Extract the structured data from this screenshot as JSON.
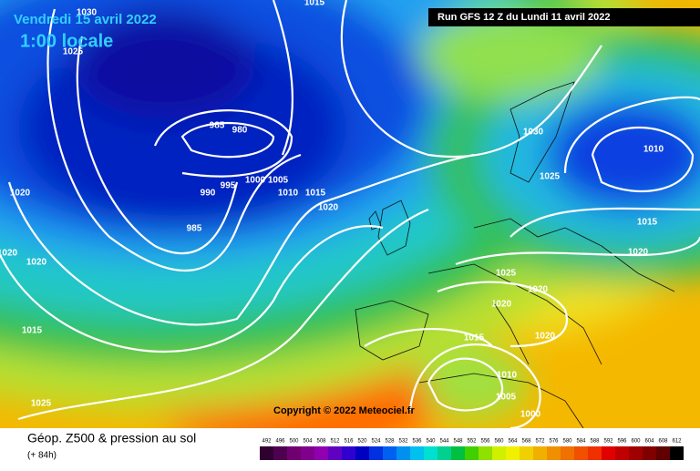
{
  "header": {
    "date": "Vendredi 15 avril 2022",
    "time": "1:00 locale",
    "run": "Run GFS 12 Z du Lundi 11 avril 2022"
  },
  "copyright": "Copyright © 2022 Meteociel.fr",
  "isobar_labels": [
    "1030",
    "1015",
    "1025",
    "985",
    "980",
    "1000",
    "1005",
    "990",
    "995",
    "1010",
    "1015",
    "1020",
    "985",
    "1020",
    "1020",
    "1020",
    "1015",
    "1025",
    "1030",
    "1025",
    "1010",
    "1015",
    "1020",
    "1025",
    "1020",
    "1020",
    "1015",
    "1020",
    "1010",
    "1005",
    "1000"
  ],
  "legend": {
    "title": "Géop. Z500 & pression au sol",
    "subtitle": "(+ 84h)",
    "scale": [
      492,
      496,
      500,
      504,
      508,
      512,
      516,
      520,
      524,
      528,
      532,
      536,
      540,
      544,
      548,
      552,
      556,
      560,
      564,
      568,
      572,
      576,
      580,
      584,
      588,
      592,
      596,
      600,
      604,
      608,
      612
    ],
    "colors": [
      "#300030",
      "#500050",
      "#700070",
      "#80008c",
      "#9000b0",
      "#6000c0",
      "#3000d0",
      "#0000c0",
      "#0030e0",
      "#0060f0",
      "#0090f0",
      "#00c0f0",
      "#00e0d0",
      "#00d090",
      "#00c040",
      "#40d000",
      "#90e000",
      "#d0f000",
      "#f0f000",
      "#f0d000",
      "#f0b000",
      "#f09000",
      "#f07000",
      "#f05000",
      "#f03000",
      "#e00000",
      "#c00000",
      "#a00000",
      "#800000",
      "#600000",
      "#000000"
    ]
  }
}
